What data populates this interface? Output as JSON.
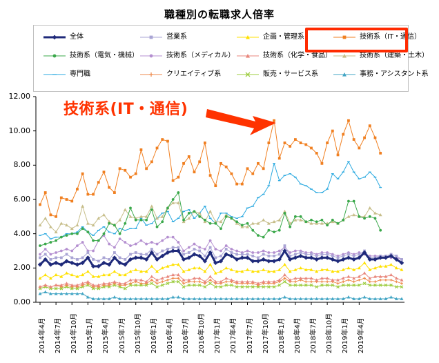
{
  "chart_data": {
    "type": "line",
    "title": "職種別の転職求人倍率",
    "ylim": [
      0,
      12
    ],
    "yticks": [
      "0.00",
      "2.00",
      "4.00",
      "6.00",
      "8.00",
      "10.00",
      "12.00"
    ],
    "xticks": [
      "2014年4月",
      "2014年7月",
      "2014年10月",
      "2015年1月",
      "2015年4月",
      "2015年7月",
      "2015年10月",
      "2016年1月",
      "2016年4月",
      "2016年7月",
      "2016年10月",
      "2017年1月",
      "2017年4月",
      "2017年7月",
      "2017年10月",
      "2018年1月",
      "2018年4月",
      "2018年7月",
      "2018年10月",
      "2019年1月",
      "2019年4月"
    ],
    "grid": false,
    "legend_position": "top",
    "series": [
      {
        "name": "全体",
        "color": "#1f2a7a",
        "marker": "diamond",
        "width": 3,
        "values": [
          2.2,
          2.5,
          2.2,
          2.3,
          2.2,
          2.4,
          2.3,
          2.2,
          2.3,
          2.6,
          2.1,
          2.1,
          2.3,
          2.2,
          2.6,
          2.3,
          2.2,
          2.5,
          2.6,
          2.6,
          2.5,
          2.9,
          2.5,
          2.7,
          2.9,
          3.0,
          3.0,
          2.5,
          2.6,
          2.8,
          2.7,
          2.4,
          2.9,
          2.3,
          2.4,
          2.8,
          2.7,
          2.5,
          2.6,
          2.6,
          2.4,
          2.4,
          2.5,
          2.4,
          2.4,
          2.5,
          3.0,
          2.5,
          2.6,
          2.7,
          2.6,
          2.6,
          2.5,
          2.6,
          2.6,
          2.5,
          2.4,
          2.5,
          2.6,
          2.5,
          2.6,
          2.9,
          2.5,
          2.5,
          2.6,
          2.6,
          2.7,
          2.5,
          2.3
        ]
      },
      {
        "name": "営業系",
        "color": "#a9a4d4",
        "marker": "square",
        "width": 1,
        "values": [
          2.6,
          2.8,
          2.5,
          2.6,
          2.6,
          2.8,
          2.6,
          2.5,
          2.6,
          2.9,
          2.5,
          2.4,
          2.6,
          2.5,
          2.9,
          2.6,
          2.5,
          2.8,
          2.9,
          2.8,
          2.8,
          3.1,
          2.8,
          3.0,
          3.1,
          3.2,
          3.2,
          2.8,
          2.9,
          3.1,
          3.0,
          2.7,
          3.2,
          2.6,
          2.7,
          3.1,
          2.9,
          2.8,
          2.8,
          2.8,
          2.7,
          2.6,
          2.8,
          2.7,
          2.7,
          2.8,
          3.3,
          2.7,
          2.8,
          2.9,
          2.8,
          2.8,
          2.7,
          2.8,
          2.8,
          2.7,
          2.6,
          2.7,
          2.8,
          2.7,
          2.8,
          3.0,
          2.6,
          2.6,
          2.7,
          2.7,
          2.8,
          2.7,
          2.5
        ]
      },
      {
        "name": "企画・管理系",
        "color": "#ffe100",
        "marker": "triangle",
        "width": 1,
        "values": [
          1.4,
          1.6,
          1.4,
          1.6,
          1.5,
          1.7,
          1.6,
          1.5,
          1.6,
          1.8,
          1.5,
          1.5,
          1.6,
          1.6,
          1.8,
          1.6,
          1.6,
          1.8,
          1.9,
          1.8,
          1.8,
          2.1,
          1.8,
          2.0,
          2.1,
          2.2,
          2.2,
          1.8,
          1.9,
          2.0,
          2.0,
          1.8,
          2.2,
          1.7,
          1.8,
          2.0,
          1.9,
          1.8,
          1.8,
          1.9,
          1.8,
          1.8,
          1.9,
          1.8,
          1.8,
          1.9,
          2.2,
          1.8,
          1.9,
          2.0,
          1.9,
          1.9,
          1.8,
          1.9,
          1.9,
          1.8,
          1.8,
          1.9,
          2.0,
          1.9,
          2.0,
          2.3,
          1.9,
          2.0,
          2.1,
          2.1,
          2.2,
          2.0,
          1.9
        ]
      },
      {
        "name": "技術系（IT・通信）",
        "color": "#f07f20",
        "marker": "square",
        "width": 1,
        "values": [
          5.7,
          6.4,
          5.1,
          5.0,
          6.1,
          6.0,
          5.9,
          6.6,
          7.5,
          6.3,
          6.3,
          7.0,
          7.6,
          6.7,
          6.4,
          7.8,
          7.7,
          7.3,
          7.5,
          8.9,
          7.8,
          8.2,
          9.0,
          9.5,
          9.4,
          7.1,
          7.3,
          8.1,
          8.5,
          7.6,
          8.2,
          9.3,
          7.4,
          6.8,
          8.1,
          7.9,
          7.5,
          6.9,
          6.9,
          7.8,
          7.5,
          8.1,
          7.8,
          9.3,
          10.6,
          8.4,
          9.3,
          9.1,
          9.5,
          9.3,
          9.2,
          9.0,
          8.7,
          8.1,
          9.3,
          10.0,
          8.6,
          9.8,
          10.6,
          9.5,
          9.0,
          9.6,
          10.3,
          9.6,
          8.7
        ]
      },
      {
        "name": "技術系（電気・機械）",
        "color": "#3aa84a",
        "marker": "circle",
        "width": 1,
        "values": [
          3.3,
          3.4,
          3.5,
          3.6,
          3.8,
          3.9,
          4.0,
          4.0,
          4.3,
          4.1,
          3.6,
          3.6,
          4.0,
          4.6,
          4.5,
          4.0,
          4.6,
          5.5,
          4.8,
          4.8,
          4.8,
          5.4,
          4.4,
          4.7,
          5.5,
          6.0,
          6.4,
          4.8,
          5.2,
          5.3,
          5.0,
          4.8,
          4.6,
          4.6,
          4.3,
          5.0,
          4.9,
          4.7,
          4.5,
          4.6,
          4.2,
          3.9,
          3.8,
          4.2,
          4.1,
          4.2,
          5.2,
          4.4,
          5.0,
          5.0,
          4.7,
          4.8,
          4.7,
          4.8,
          4.5,
          4.8,
          4.6,
          4.8,
          5.9,
          5.9,
          5.0,
          4.9,
          5.0,
          4.9,
          4.2
        ]
      },
      {
        "name": "技術系（メディカル）",
        "color": "#b48fd0",
        "marker": "circle",
        "width": 1,
        "values": [
          2.8,
          3.1,
          2.8,
          2.9,
          3.0,
          3.1,
          3.0,
          3.3,
          3.5,
          3.0,
          3.0,
          3.6,
          3.9,
          3.4,
          3.2,
          3.7,
          3.5,
          3.3,
          3.4,
          3.6,
          3.4,
          3.5,
          3.4,
          3.6,
          3.8,
          3.8,
          3.5,
          3.0,
          3.2,
          3.4,
          3.2,
          3.1,
          3.6,
          3.1,
          3.0,
          3.3,
          3.1,
          3.0,
          2.9,
          3.0,
          2.9,
          2.9,
          3.0,
          2.9,
          2.9,
          3.0,
          3.2,
          2.9,
          3.0,
          3.0,
          2.9,
          2.9,
          2.8,
          2.9,
          2.9,
          2.8,
          2.7,
          2.8,
          2.9,
          2.8,
          2.9,
          2.8,
          2.7,
          2.7,
          2.7,
          2.7,
          2.6,
          2.6,
          2.5
        ]
      },
      {
        "name": "技術系（化学・食品）",
        "color": "#e8867c",
        "marker": "triangle",
        "width": 1,
        "values": [
          0.9,
          1.0,
          0.9,
          1.0,
          1.0,
          1.1,
          1.0,
          1.0,
          1.1,
          1.2,
          1.0,
          1.0,
          1.1,
          1.1,
          1.2,
          1.1,
          1.1,
          1.3,
          1.3,
          1.3,
          1.2,
          1.5,
          1.3,
          1.4,
          1.5,
          1.6,
          1.6,
          1.3,
          1.3,
          1.4,
          1.4,
          1.2,
          1.5,
          1.2,
          1.2,
          1.4,
          1.3,
          1.2,
          1.2,
          1.2,
          1.2,
          1.1,
          1.2,
          1.2,
          1.2,
          1.3,
          1.6,
          1.3,
          1.4,
          1.4,
          1.4,
          1.4,
          1.3,
          1.4,
          1.4,
          1.3,
          1.3,
          1.4,
          1.5,
          1.4,
          1.5,
          1.7,
          1.4,
          1.5,
          1.5,
          1.5,
          1.6,
          1.4,
          1.3
        ]
      },
      {
        "name": "技術系（建築・土木）",
        "color": "#c7be8a",
        "marker": "triangle",
        "width": 1,
        "values": [
          4.5,
          4.9,
          4.4,
          4.1,
          4.6,
          4.5,
          4.3,
          4.5,
          5.6,
          4.6,
          4.5,
          4.9,
          5.1,
          4.7,
          4.5,
          4.8,
          5.4,
          5.0,
          4.9,
          5.0,
          5.0,
          5.6,
          4.9,
          5.0,
          5.5,
          5.8,
          5.8,
          4.7,
          4.9,
          5.3,
          5.2,
          4.7,
          5.3,
          4.7,
          4.7,
          5.1,
          4.9,
          4.6,
          4.4,
          4.4,
          4.6,
          4.6,
          4.8,
          4.6,
          4.7,
          4.8,
          5.3,
          4.6,
          4.8,
          4.8,
          4.7,
          4.6,
          4.6,
          4.6,
          4.6,
          4.7,
          4.6,
          4.8,
          5.0,
          5.1,
          5.0,
          5.0,
          5.5,
          5.2,
          5.1
        ]
      },
      {
        "name": "専門職",
        "color": "#2aa9e0",
        "marker": "dash",
        "width": 1,
        "values": [
          3.9,
          4.0,
          3.7,
          3.8,
          3.8,
          4.0,
          4.0,
          4.1,
          4.4,
          4.1,
          3.9,
          4.2,
          4.4,
          4.1,
          4.0,
          4.3,
          4.2,
          4.3,
          4.3,
          4.9,
          4.5,
          4.6,
          4.9,
          5.2,
          5.3,
          4.7,
          4.9,
          5.3,
          5.4,
          4.9,
          5.2,
          5.6,
          4.9,
          4.6,
          5.2,
          5.2,
          5.0,
          4.9,
          5.0,
          5.5,
          5.6,
          6.1,
          6.3,
          6.8,
          8.1,
          7.1,
          7.4,
          7.5,
          7.3,
          6.9,
          6.8,
          6.6,
          6.4,
          6.4,
          6.6,
          7.5,
          7.2,
          7.6,
          8.2,
          7.6,
          7.2,
          7.3,
          7.6,
          7.3,
          6.7
        ]
      },
      {
        "name": "クリエイティブ系",
        "color": "#ee8a4c",
        "marker": "plus",
        "width": 1,
        "values": [
          0.9,
          1.0,
          0.9,
          1.0,
          0.9,
          1.0,
          0.9,
          0.9,
          1.0,
          1.1,
          0.9,
          0.9,
          1.0,
          1.0,
          1.1,
          1.0,
          1.0,
          1.1,
          1.2,
          1.1,
          1.1,
          1.3,
          1.1,
          1.2,
          1.3,
          1.4,
          1.4,
          1.1,
          1.2,
          1.2,
          1.2,
          1.1,
          1.3,
          1.1,
          1.1,
          1.2,
          1.2,
          1.1,
          1.1,
          1.1,
          1.1,
          1.0,
          1.1,
          1.1,
          1.1,
          1.2,
          1.4,
          1.2,
          1.2,
          1.3,
          1.2,
          1.2,
          1.2,
          1.2,
          1.2,
          1.2,
          1.1,
          1.2,
          1.3,
          1.2,
          1.3,
          1.4,
          1.2,
          1.2,
          1.3,
          1.3,
          1.3,
          1.2,
          1.1
        ]
      },
      {
        "name": "販売・サービス系",
        "color": "#9ccc3e",
        "marker": "cross",
        "width": 1,
        "values": [
          0.8,
          0.9,
          0.8,
          0.8,
          0.8,
          0.9,
          0.8,
          0.8,
          0.9,
          1.0,
          0.8,
          0.8,
          0.9,
          0.9,
          1.0,
          0.9,
          0.8,
          1.0,
          1.0,
          1.0,
          1.0,
          1.1,
          0.9,
          1.0,
          1.1,
          1.2,
          1.2,
          0.9,
          1.0,
          1.0,
          1.0,
          0.9,
          1.1,
          0.9,
          0.9,
          1.0,
          1.0,
          0.9,
          0.9,
          0.9,
          0.9,
          0.9,
          0.9,
          0.9,
          0.9,
          1.0,
          1.2,
          1.0,
          1.0,
          1.0,
          1.0,
          1.0,
          0.9,
          1.0,
          1.0,
          1.0,
          0.9,
          1.0,
          1.0,
          1.0,
          1.0,
          1.1,
          1.0,
          1.0,
          1.0,
          1.0,
          1.0,
          0.9,
          0.9
        ]
      },
      {
        "name": "事務・アシスタント系",
        "color": "#42a5c4",
        "marker": "triangle",
        "width": 1,
        "values": [
          0.5,
          0.6,
          0.5,
          0.5,
          0.5,
          0.5,
          0.5,
          0.5,
          0.5,
          0.3,
          0.2,
          0.2,
          0.2,
          0.2,
          0.3,
          0.2,
          0.2,
          0.2,
          0.2,
          0.2,
          0.2,
          0.2,
          0.2,
          0.2,
          0.2,
          0.3,
          0.3,
          0.2,
          0.2,
          0.2,
          0.2,
          0.2,
          0.2,
          0.2,
          0.2,
          0.2,
          0.2,
          0.2,
          0.2,
          0.2,
          0.2,
          0.2,
          0.2,
          0.2,
          0.2,
          0.2,
          0.3,
          0.2,
          0.2,
          0.2,
          0.2,
          0.2,
          0.2,
          0.2,
          0.2,
          0.2,
          0.2,
          0.2,
          0.3,
          0.2,
          0.2,
          0.3,
          0.2,
          0.2,
          0.2,
          0.2,
          0.3,
          0.2,
          0.2
        ]
      }
    ],
    "annotation": "技術系(IT・通信)"
  }
}
